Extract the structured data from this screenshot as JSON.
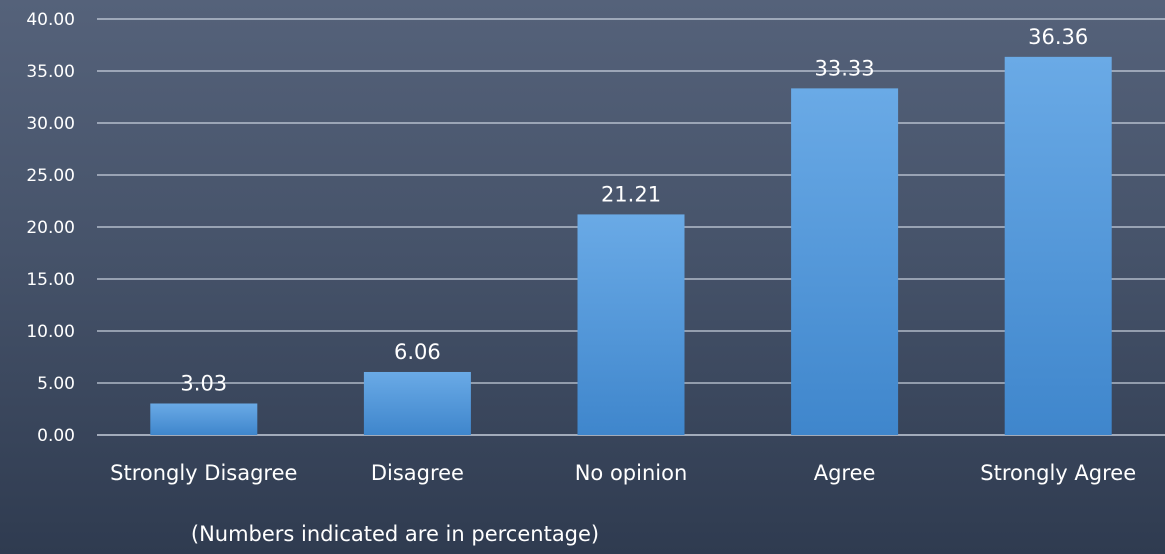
{
  "chart_data": {
    "type": "bar",
    "categories": [
      "Strongly Disagree",
      "Disagree",
      "No opinion",
      "Agree",
      "Strongly Agree"
    ],
    "values": [
      3.03,
      6.06,
      21.21,
      33.33,
      36.36
    ],
    "data_labels": [
      "3.03",
      "6.06",
      "21.21",
      "33.33",
      "36.36"
    ],
    "ylim": [
      0,
      40
    ],
    "yticks": [
      "0.00",
      "5.00",
      "10.00",
      "15.00",
      "20.00",
      "25.00",
      "30.00",
      "35.00",
      "40.00"
    ],
    "grid": true,
    "legend": "none",
    "note": "(Numbers indicated are in percentage)",
    "colors": {
      "bar_top": "#6aaae6",
      "bar_bottom": "#3f86cc",
      "gridline": "#dfe6f1",
      "text": "#ffffff"
    }
  }
}
